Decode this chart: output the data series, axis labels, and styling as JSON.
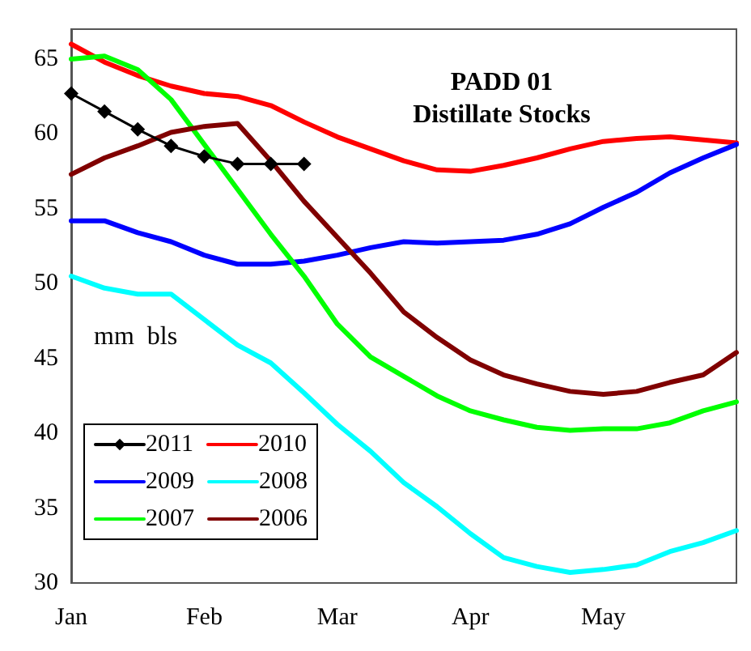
{
  "chart_data": {
    "type": "line",
    "title": "PADD 01\nDistillate Stocks",
    "annotations": [
      "mm  bls"
    ],
    "categories": [
      "Jan",
      null,
      null,
      null,
      "Feb",
      null,
      null,
      null,
      "Mar",
      null,
      null,
      null,
      "Apr",
      null,
      null,
      null,
      "May",
      null,
      null,
      null,
      null
    ],
    "ylim": [
      30,
      67
    ],
    "yticks": [
      30,
      35,
      40,
      45,
      50,
      55,
      60,
      65
    ],
    "grid": false,
    "legend": "bottom left",
    "series": [
      {
        "name": "2011",
        "color": "#000000",
        "marker": "diamond",
        "values": [
          62.7,
          61.5,
          60.3,
          59.2,
          58.5,
          58.0,
          58.0,
          58.0,
          null,
          null,
          null,
          null,
          null,
          null,
          null,
          null,
          null,
          null,
          null,
          null,
          null
        ]
      },
      {
        "name": "2010",
        "color": "#ff0000",
        "values": [
          66.0,
          64.8,
          63.9,
          63.2,
          62.7,
          62.5,
          61.9,
          60.8,
          59.8,
          59.0,
          58.2,
          57.6,
          57.5,
          57.9,
          58.4,
          59.0,
          59.5,
          59.7,
          59.8,
          59.6,
          59.4
        ]
      },
      {
        "name": "2009",
        "color": "#0000ff",
        "values": [
          54.2,
          54.2,
          53.4,
          52.8,
          51.9,
          51.3,
          51.3,
          51.5,
          51.9,
          52.4,
          52.8,
          52.7,
          52.8,
          52.9,
          53.3,
          54.0,
          55.1,
          56.1,
          57.4,
          58.4,
          59.3
        ]
      },
      {
        "name": "2008",
        "color": "#00ffff",
        "values": [
          50.5,
          49.7,
          49.3,
          49.3,
          47.6,
          45.9,
          44.7,
          42.7,
          40.6,
          38.8,
          36.7,
          35.1,
          33.3,
          31.7,
          31.1,
          30.7,
          30.9,
          31.2,
          32.1,
          32.7,
          33.5
        ]
      },
      {
        "name": "2007",
        "color": "#00ff00",
        "values": [
          65.0,
          65.2,
          64.3,
          62.3,
          59.3,
          56.3,
          53.3,
          50.5,
          47.3,
          45.1,
          43.8,
          42.5,
          41.5,
          40.9,
          40.4,
          40.2,
          40.3,
          40.3,
          40.7,
          41.5,
          42.1
        ]
      },
      {
        "name": "2006",
        "color": "#800000",
        "values": [
          57.3,
          58.4,
          59.2,
          60.1,
          60.5,
          60.7,
          58.2,
          55.5,
          53.1,
          50.7,
          48.1,
          46.4,
          44.9,
          43.9,
          43.3,
          42.8,
          42.6,
          42.8,
          43.4,
          43.9,
          45.4
        ]
      }
    ]
  }
}
